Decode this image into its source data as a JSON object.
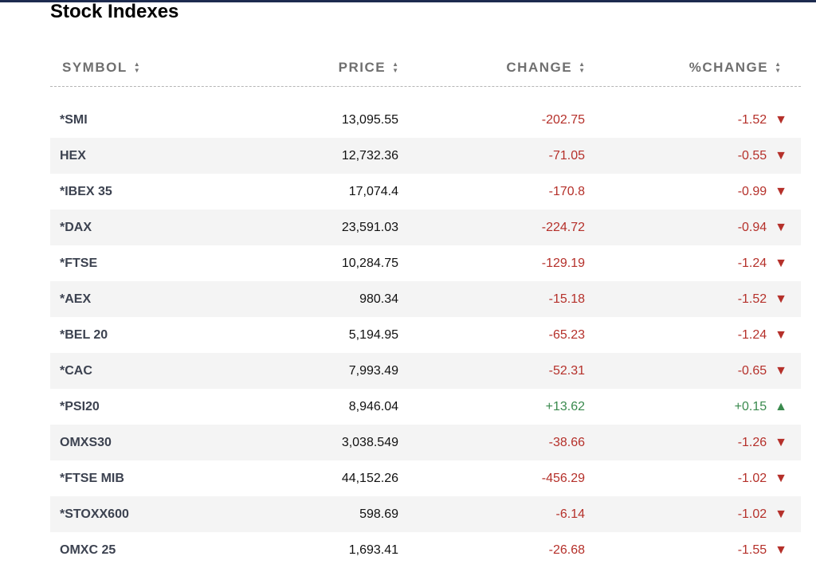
{
  "title": "Stock Indexes",
  "colors": {
    "negative": "#b5302a",
    "positive": "#3a8a4e",
    "topbar": "#1d2b4f"
  },
  "columns": [
    "SYMBOL",
    "PRICE",
    "CHANGE",
    "%CHANGE"
  ],
  "rows": [
    {
      "symbol": "*SMI",
      "price": "13,095.55",
      "change": "-202.75",
      "pct": "-1.52",
      "dir": "down"
    },
    {
      "symbol": "HEX",
      "price": "12,732.36",
      "change": "-71.05",
      "pct": "-0.55",
      "dir": "down"
    },
    {
      "symbol": "*IBEX 35",
      "price": "17,074.4",
      "change": "-170.8",
      "pct": "-0.99",
      "dir": "down"
    },
    {
      "symbol": "*DAX",
      "price": "23,591.03",
      "change": "-224.72",
      "pct": "-0.94",
      "dir": "down"
    },
    {
      "symbol": "*FTSE",
      "price": "10,284.75",
      "change": "-129.19",
      "pct": "-1.24",
      "dir": "down"
    },
    {
      "symbol": "*AEX",
      "price": "980.34",
      "change": "-15.18",
      "pct": "-1.52",
      "dir": "down"
    },
    {
      "symbol": "*BEL 20",
      "price": "5,194.95",
      "change": "-65.23",
      "pct": "-1.24",
      "dir": "down"
    },
    {
      "symbol": "*CAC",
      "price": "7,993.49",
      "change": "-52.31",
      "pct": "-0.65",
      "dir": "down"
    },
    {
      "symbol": "*PSI20",
      "price": "8,946.04",
      "change": "+13.62",
      "pct": "+0.15",
      "dir": "up"
    },
    {
      "symbol": "OMXS30",
      "price": "3,038.549",
      "change": "-38.66",
      "pct": "-1.26",
      "dir": "down"
    },
    {
      "symbol": "*FTSE MIB",
      "price": "44,152.26",
      "change": "-456.29",
      "pct": "-1.02",
      "dir": "down"
    },
    {
      "symbol": "*STOXX600",
      "price": "598.69",
      "change": "-6.14",
      "pct": "-1.02",
      "dir": "down"
    },
    {
      "symbol": "OMXC 25",
      "price": "1,693.41",
      "change": "-26.68",
      "pct": "-1.55",
      "dir": "down"
    }
  ]
}
